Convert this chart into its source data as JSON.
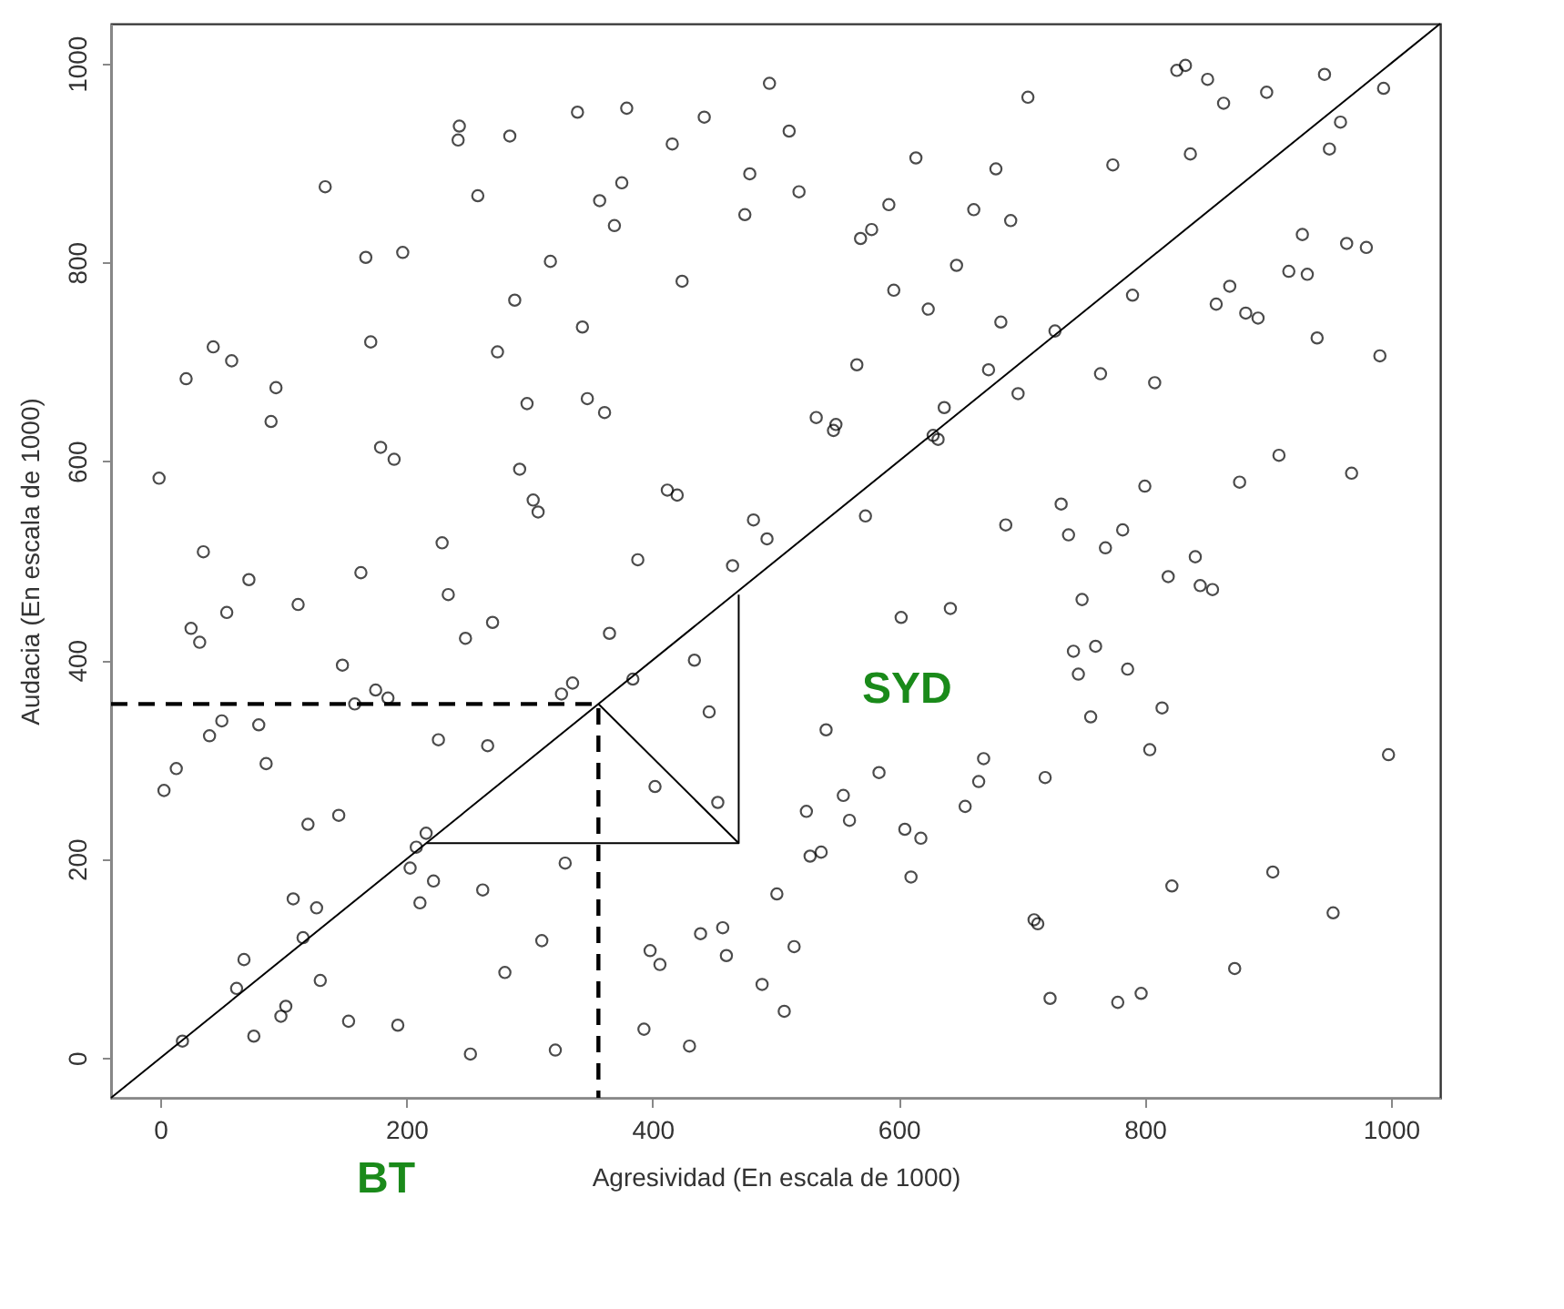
{
  "chart_data": {
    "type": "scatter",
    "xlabel": "Agresividad (En escala de 1000)",
    "ylabel": "Audacia (En escala de 1000)",
    "xlim": [
      -40,
      1040
    ],
    "ylim": [
      -40,
      1040
    ],
    "xticks": [
      0,
      200,
      400,
      600,
      800,
      1000
    ],
    "yticks": [
      0,
      200,
      400,
      600,
      800,
      1000
    ],
    "grid": false,
    "annotations": [
      "BT",
      "SYD"
    ],
    "series": [
      {
        "marker": "circle",
        "color": "#000000",
        "x": [
          495,
          243,
          242,
          284,
          339,
          379,
          442,
          416,
          479,
          475,
          134,
          258,
          375,
          357,
          369,
          167,
          197,
          317,
          424,
          288,
          343,
          43,
          58,
          21,
          94,
          90,
          171,
          274,
          298,
          347,
          361,
          179,
          190,
          -1,
          292,
          303,
          307,
          412,
          420,
          482,
          493,
          35,
          229,
          388,
          465,
          163,
          72,
          705,
          511,
          519,
          614,
          679,
          774,
          837,
          826,
          833,
          851,
          864,
          899,
          946,
          994,
          959,
          950,
          592,
          578,
          569,
          661,
          691,
          647,
          596,
          624,
          683,
          727,
          790,
          928,
          964,
          980,
          917,
          932,
          869,
          858,
          882,
          892,
          940,
          991,
          566,
          673,
          697,
          764,
          808,
          533,
          549,
          547,
          637,
          628,
          632,
          573,
          909,
          968,
          877,
          800,
          732,
          738,
          687,
          768,
          782,
          841,
          819,
          845,
          855,
          749,
          602,
          642,
          742,
          760,
          746,
          786,
          814,
          756,
          804,
          998,
          541,
          669,
          665,
          654,
          719,
          584,
          555,
          560,
          525,
          605,
          618,
          528,
          537,
          610,
          501,
          822,
          904,
          953,
          710,
          713,
          515,
          873,
          489,
          507,
          723,
          778,
          797,
          54,
          25,
          32,
          112,
          234,
          248,
          270,
          365,
          148,
          434,
          384,
          175,
          185,
          158,
          326,
          335,
          50,
          40,
          80,
          86,
          13,
          3,
          226,
          266,
          446,
          402,
          453,
          120,
          145,
          216,
          208,
          203,
          222,
          211,
          262,
          329,
          108,
          127,
          116,
          68,
          62,
          130,
          102,
          98,
          76,
          18,
          153,
          193,
          252,
          321,
          310,
          280,
          398,
          406,
          439,
          457,
          460,
          393,
          430
        ],
        "values": [
          980,
          937,
          923,
          927,
          951,
          955,
          946,
          919,
          889,
          848,
          876,
          867,
          880,
          862,
          837,
          805,
          810,
          801,
          781,
          762,
          735,
          715,
          701,
          683,
          674,
          640,
          720,
          710,
          658,
          663,
          649,
          614,
          602,
          583,
          592,
          561,
          549,
          571,
          566,
          541,
          522,
          509,
          518,
          501,
          495,
          488,
          481,
          966,
          932,
          871,
          905,
          894,
          898,
          909,
          993,
          998,
          984,
          960,
          971,
          989,
          975,
          941,
          914,
          858,
          833,
          824,
          853,
          842,
          797,
          772,
          753,
          740,
          731,
          767,
          828,
          819,
          815,
          791,
          788,
          776,
          758,
          749,
          744,
          724,
          706,
          697,
          692,
          668,
          688,
          679,
          644,
          637,
          631,
          654,
          626,
          622,
          545,
          606,
          588,
          579,
          575,
          557,
          526,
          536,
          513,
          531,
          504,
          484,
          475,
          471,
          461,
          443,
          452,
          409,
          414,
          386,
          391,
          352,
          343,
          310,
          305,
          330,
          301,
          278,
          253,
          282,
          287,
          264,
          239,
          248,
          230,
          221,
          203,
          207,
          182,
          165,
          173,
          187,
          146,
          139,
          135,
          112,
          90,
          74,
          47,
          60,
          56,
          65,
          448,
          432,
          418,
          456,
          466,
          422,
          438,
          427,
          395,
          400,
          381,
          370,
          362,
          356,
          366,
          377,
          339,
          324,
          335,
          296,
          291,
          269,
          320,
          314,
          348,
          273,
          257,
          235,
          244,
          226,
          212,
          191,
          178,
          156,
          169,
          196,
          160,
          151,
          121,
          99,
          70,
          78,
          52,
          42,
          22,
          17,
          37,
          33,
          4,
          8,
          118,
          86,
          108,
          94,
          125,
          131,
          103,
          29,
          12
        ]
      },
      {
        "type": "line",
        "line_style": "solid",
        "color": "#000000",
        "x": [
          -40,
          1040
        ],
        "values": [
          -40,
          1040
        ]
      },
      {
        "type": "line",
        "line_style": "dashed",
        "color": "#000000",
        "x": [
          -40,
          356,
          356
        ],
        "values": [
          356,
          356,
          -40
        ]
      },
      {
        "type": "line",
        "line_style": "solid",
        "color": "#000000",
        "x": [
          216,
          470,
          470
        ],
        "values": [
          216,
          216,
          466
        ]
      },
      {
        "type": "line",
        "line_style": "solid",
        "color": "#000000",
        "x": [
          470,
          356
        ],
        "values": [
          216,
          356
        ]
      }
    ]
  }
}
